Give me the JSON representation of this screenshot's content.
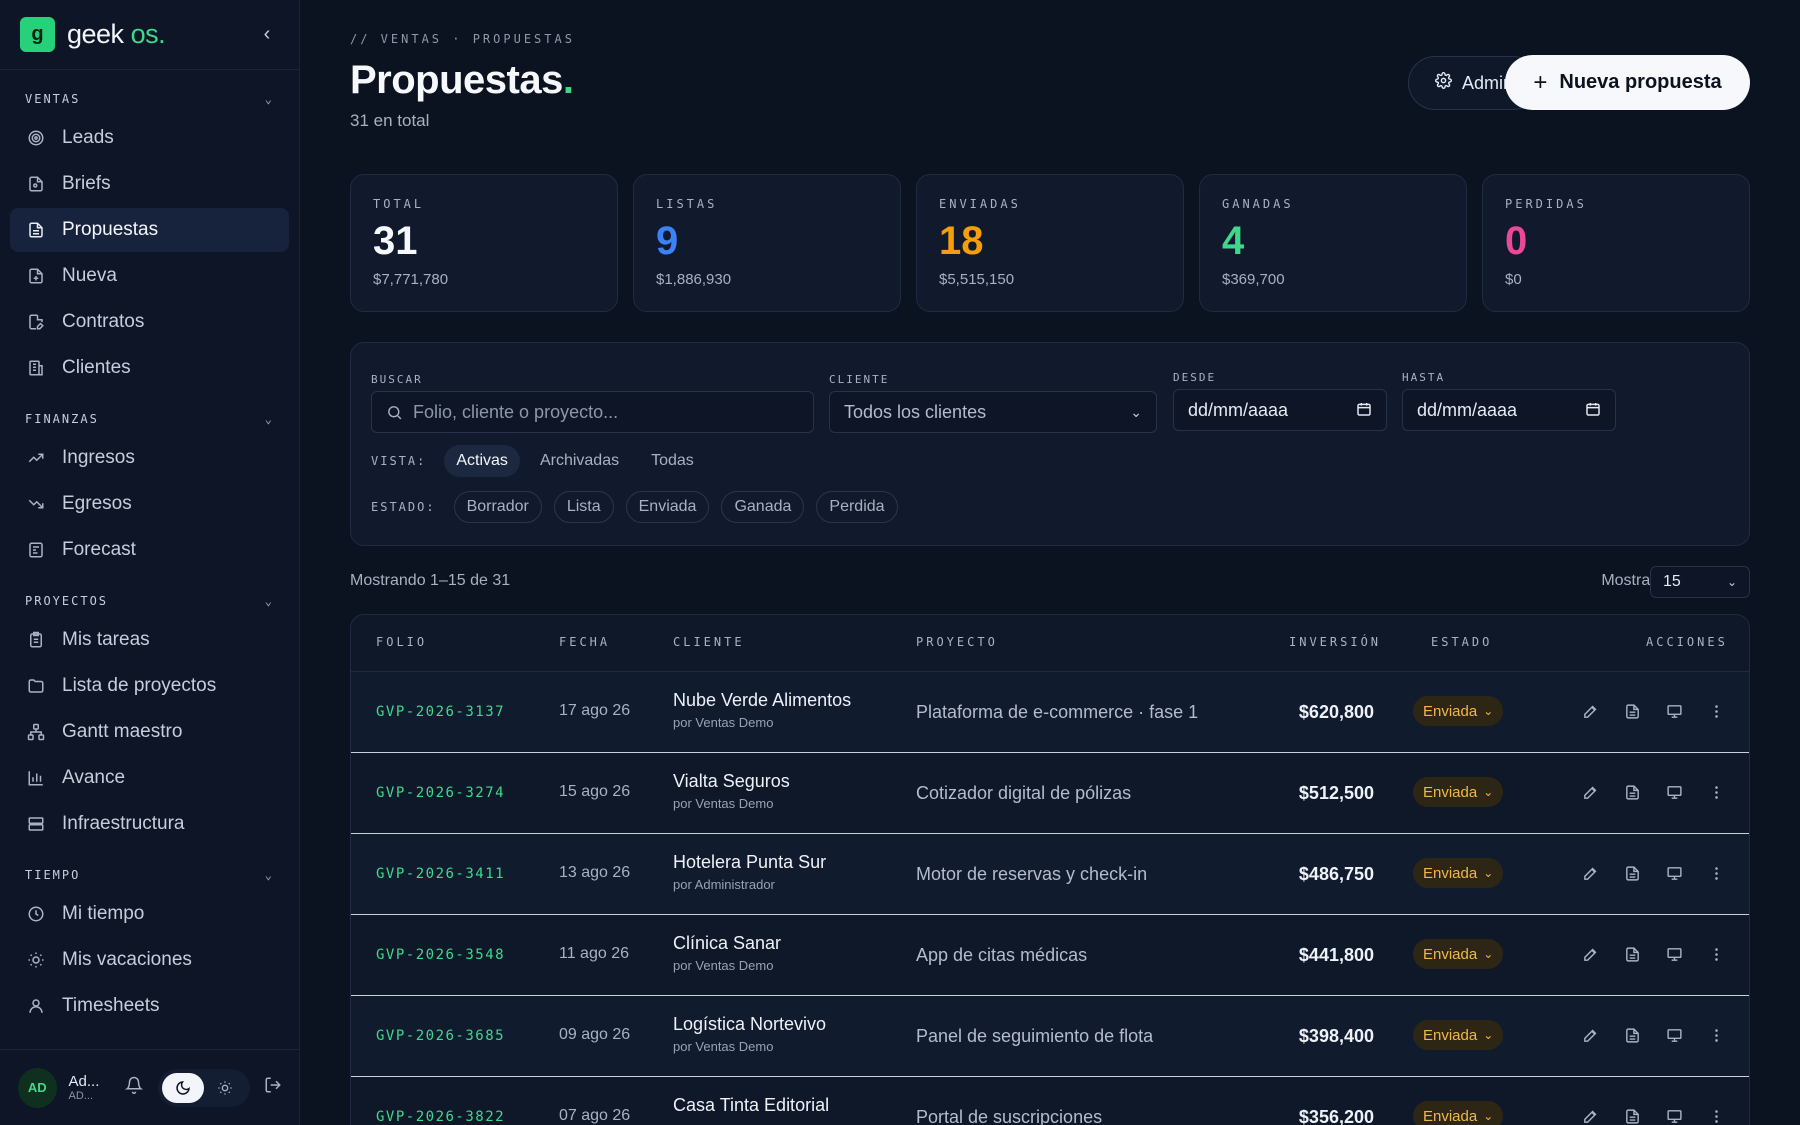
{
  "brand": {
    "name_prefix": "geek ",
    "name_suffix": "os",
    "dot": ".",
    "logo_letter": "g"
  },
  "sidebar": {
    "sections": [
      {
        "title": "VENTAS",
        "items": [
          {
            "label": "Leads",
            "icon": "target-icon"
          },
          {
            "label": "Briefs",
            "icon": "brief-icon"
          },
          {
            "label": "Propuestas",
            "icon": "document-icon",
            "active": true
          },
          {
            "label": "Nueva",
            "icon": "file-plus-icon"
          },
          {
            "label": "Contratos",
            "icon": "contract-icon"
          },
          {
            "label": "Clientes",
            "icon": "building-icon"
          }
        ]
      },
      {
        "title": "FINANZAS",
        "items": [
          {
            "label": "Ingresos",
            "icon": "trend-up-icon"
          },
          {
            "label": "Egresos",
            "icon": "trend-down-icon"
          },
          {
            "label": "Forecast",
            "icon": "forecast-icon"
          }
        ]
      },
      {
        "title": "PROYECTOS",
        "items": [
          {
            "label": "Mis tareas",
            "icon": "clipboard-icon"
          },
          {
            "label": "Lista de proyectos",
            "icon": "folder-icon"
          },
          {
            "label": "Gantt maestro",
            "icon": "hierarchy-icon"
          },
          {
            "label": "Avance",
            "icon": "bar-chart-icon"
          },
          {
            "label": "Infraestructura",
            "icon": "server-icon"
          }
        ]
      },
      {
        "title": "TIEMPO",
        "items": [
          {
            "label": "Mi tiempo",
            "icon": "clock-icon"
          },
          {
            "label": "Mis vacaciones",
            "icon": "sun-icon"
          },
          {
            "label": "Timesheets",
            "icon": "user-icon"
          }
        ]
      }
    ],
    "footer": {
      "avatar": "AD",
      "name": "Ad...",
      "sub": "AD..."
    }
  },
  "header": {
    "breadcrumb": "// VENTAS · PROPUESTAS",
    "title": "Propuestas",
    "title_dot": ".",
    "subtitle": "31 en total",
    "admin_label": "Admin",
    "new_label": "Nueva propuesta"
  },
  "stats": [
    {
      "label": "TOTAL",
      "value": "31",
      "amount": "$7,771,780",
      "color": "#f6f8fc"
    },
    {
      "label": "LISTAS",
      "value": "9",
      "amount": "$1,886,930",
      "color": "#3b82f6"
    },
    {
      "label": "ENVIADAS",
      "value": "18",
      "amount": "$5,515,150",
      "color": "#f59e0b"
    },
    {
      "label": "GANADAS",
      "value": "4",
      "amount": "$369,700",
      "color": "#3fd88a"
    },
    {
      "label": "PERDIDAS",
      "value": "0",
      "amount": "$0",
      "color": "#ec4899"
    }
  ],
  "filters": {
    "search_label": "BUSCAR",
    "search_placeholder": "Folio, cliente o proyecto...",
    "client_label": "CLIENTE",
    "client_value": "Todos los clientes",
    "from_label": "DESDE",
    "from_value": "dd/mm/aaaa",
    "to_label": "HASTA",
    "to_value": "dd/mm/aaaa",
    "view_label": "VISTA:",
    "views": [
      "Activas",
      "Archivadas",
      "Todas"
    ],
    "state_label": "ESTADO:",
    "states": [
      "Borrador",
      "Lista",
      "Enviada",
      "Ganada",
      "Perdida"
    ]
  },
  "listing": {
    "showing": "Mostrando 1–15 de 31",
    "perpage_label": "Mostrar:",
    "perpage_value": "15"
  },
  "table": {
    "headers": {
      "folio": "FOLIO",
      "fecha": "FECHA",
      "cliente": "CLIENTE",
      "proyecto": "PROYECTO",
      "inversion": "INVERSIÓN",
      "estado": "ESTADO",
      "acciones": "ACCIONES"
    },
    "rows": [
      {
        "folio": "GVP-2026-3137",
        "fecha": "17 ago 26",
        "cliente": "Nube Verde Alimentos",
        "por": "por Ventas Demo",
        "proyecto": "Plataforma de e-commerce · fase 1",
        "inversion": "$620,800",
        "estado": "Enviada"
      },
      {
        "folio": "GVP-2026-3274",
        "fecha": "15 ago 26",
        "cliente": "Vialta Seguros",
        "por": "por Ventas Demo",
        "proyecto": "Cotizador digital de pólizas",
        "inversion": "$512,500",
        "estado": "Enviada"
      },
      {
        "folio": "GVP-2026-3411",
        "fecha": "13 ago 26",
        "cliente": "Hotelera Punta Sur",
        "por": "por Administrador",
        "proyecto": "Motor de reservas y check-in",
        "inversion": "$486,750",
        "estado": "Enviada"
      },
      {
        "folio": "GVP-2026-3548",
        "fecha": "11 ago 26",
        "cliente": "Clínica Sanar",
        "por": "por Ventas Demo",
        "proyecto": "App de citas médicas",
        "inversion": "$441,800",
        "estado": "Enviada"
      },
      {
        "folio": "GVP-2026-3685",
        "fecha": "09 ago 26",
        "cliente": "Logística Nortevivo",
        "por": "por Ventas Demo",
        "proyecto": "Panel de seguimiento de flota",
        "inversion": "$398,400",
        "estado": "Enviada"
      },
      {
        "folio": "GVP-2026-3822",
        "fecha": "07 ago 26",
        "cliente": "Casa Tinta Editorial",
        "por": "",
        "proyecto": "Portal de suscripciones",
        "inversion": "$356,200",
        "estado": "Enviada"
      }
    ]
  }
}
